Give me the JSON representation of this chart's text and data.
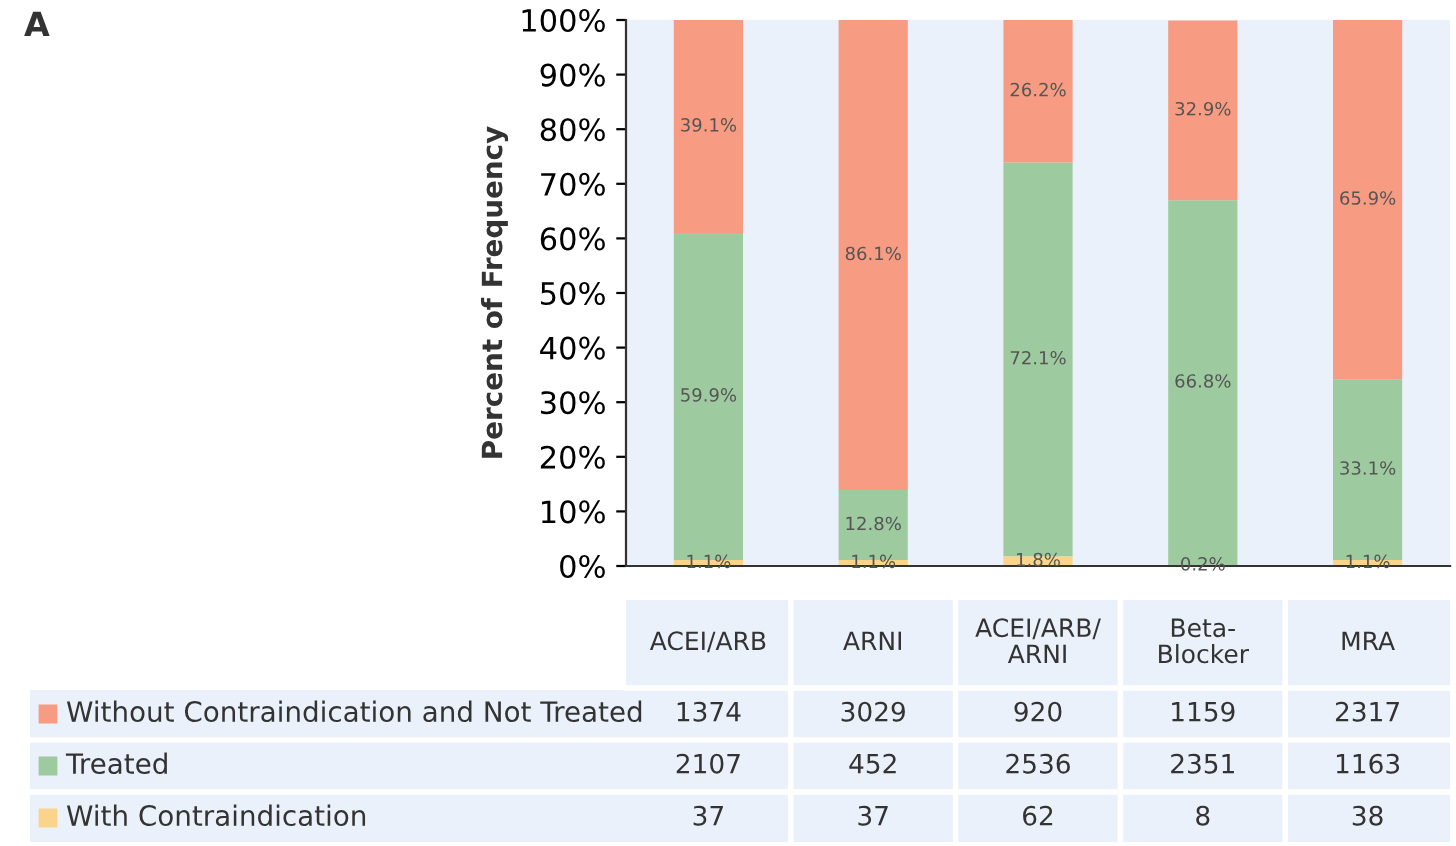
{
  "chart_data": [
    {
      "type": "bar",
      "legend": "bottom left",
      "ylabel": "Percent of Frequency",
      "stacked": true,
      "categories": [
        null,
        null,
        null,
        null,
        null
      ],
      "ylim": [
        0,
        100
      ],
      "yticks": [
        {
          "value": 0,
          "label": "0%"
        },
        {
          "value": 10,
          "label": "10%"
        },
        {
          "value": 20,
          "label": "20%"
        },
        {
          "value": 30,
          "label": "30%"
        },
        {
          "value": 40,
          "label": "40%"
        },
        {
          "value": 50,
          "label": "50%"
        },
        {
          "value": 60,
          "label": "60%"
        },
        {
          "value": 70,
          "label": "70%"
        },
        {
          "value": 80,
          "label": "80%"
        },
        {
          "value": 90,
          "label": "90%"
        },
        {
          "value": 100,
          "label": "100%"
        }
      ],
      "series": [
        {
          "name": "With Contraindication",
          "color": "#fbd48c",
          "values": [
            1.1,
            1.1,
            1.8,
            0.2,
            1.1
          ],
          "value_labels": [
            "1.1%",
            "1.1%",
            "1.8%",
            "0.2%",
            "1.1%"
          ]
        },
        {
          "name": "Treated",
          "color": "#9dcb9f",
          "values": [
            59.9,
            12.8,
            72.1,
            66.8,
            33.1
          ],
          "value_labels": [
            "59.9%",
            "12.8%",
            "72.1%",
            "66.8%",
            "33.1%"
          ]
        },
        {
          "name": "Without Contraindication and Not Treated",
          "color": "#f79c82",
          "values": [
            39.1,
            86.1,
            26.2,
            32.9,
            65.9
          ],
          "value_labels": [
            "39.1%",
            "86.1%",
            "26.2%",
            "32.9%",
            "65.9%"
          ]
        }
      ]
    },
    {
      "type": "other",
      "title": "A",
      "data_labels": true,
      "categories": [
        "ACEI/ARB",
        "ARNI",
        "ACEI/ARB/\nARNI",
        "Beta-\nBlocker",
        "MRA"
      ],
      "series": [
        {
          "values": [
            1374,
            3029,
            920,
            1159,
            2317
          ]
        },
        {
          "values": [
            2107,
            452,
            2536,
            2351,
            1163
          ]
        },
        {
          "values": [
            37,
            37,
            62,
            8,
            38
          ]
        }
      ]
    }
  ]
}
